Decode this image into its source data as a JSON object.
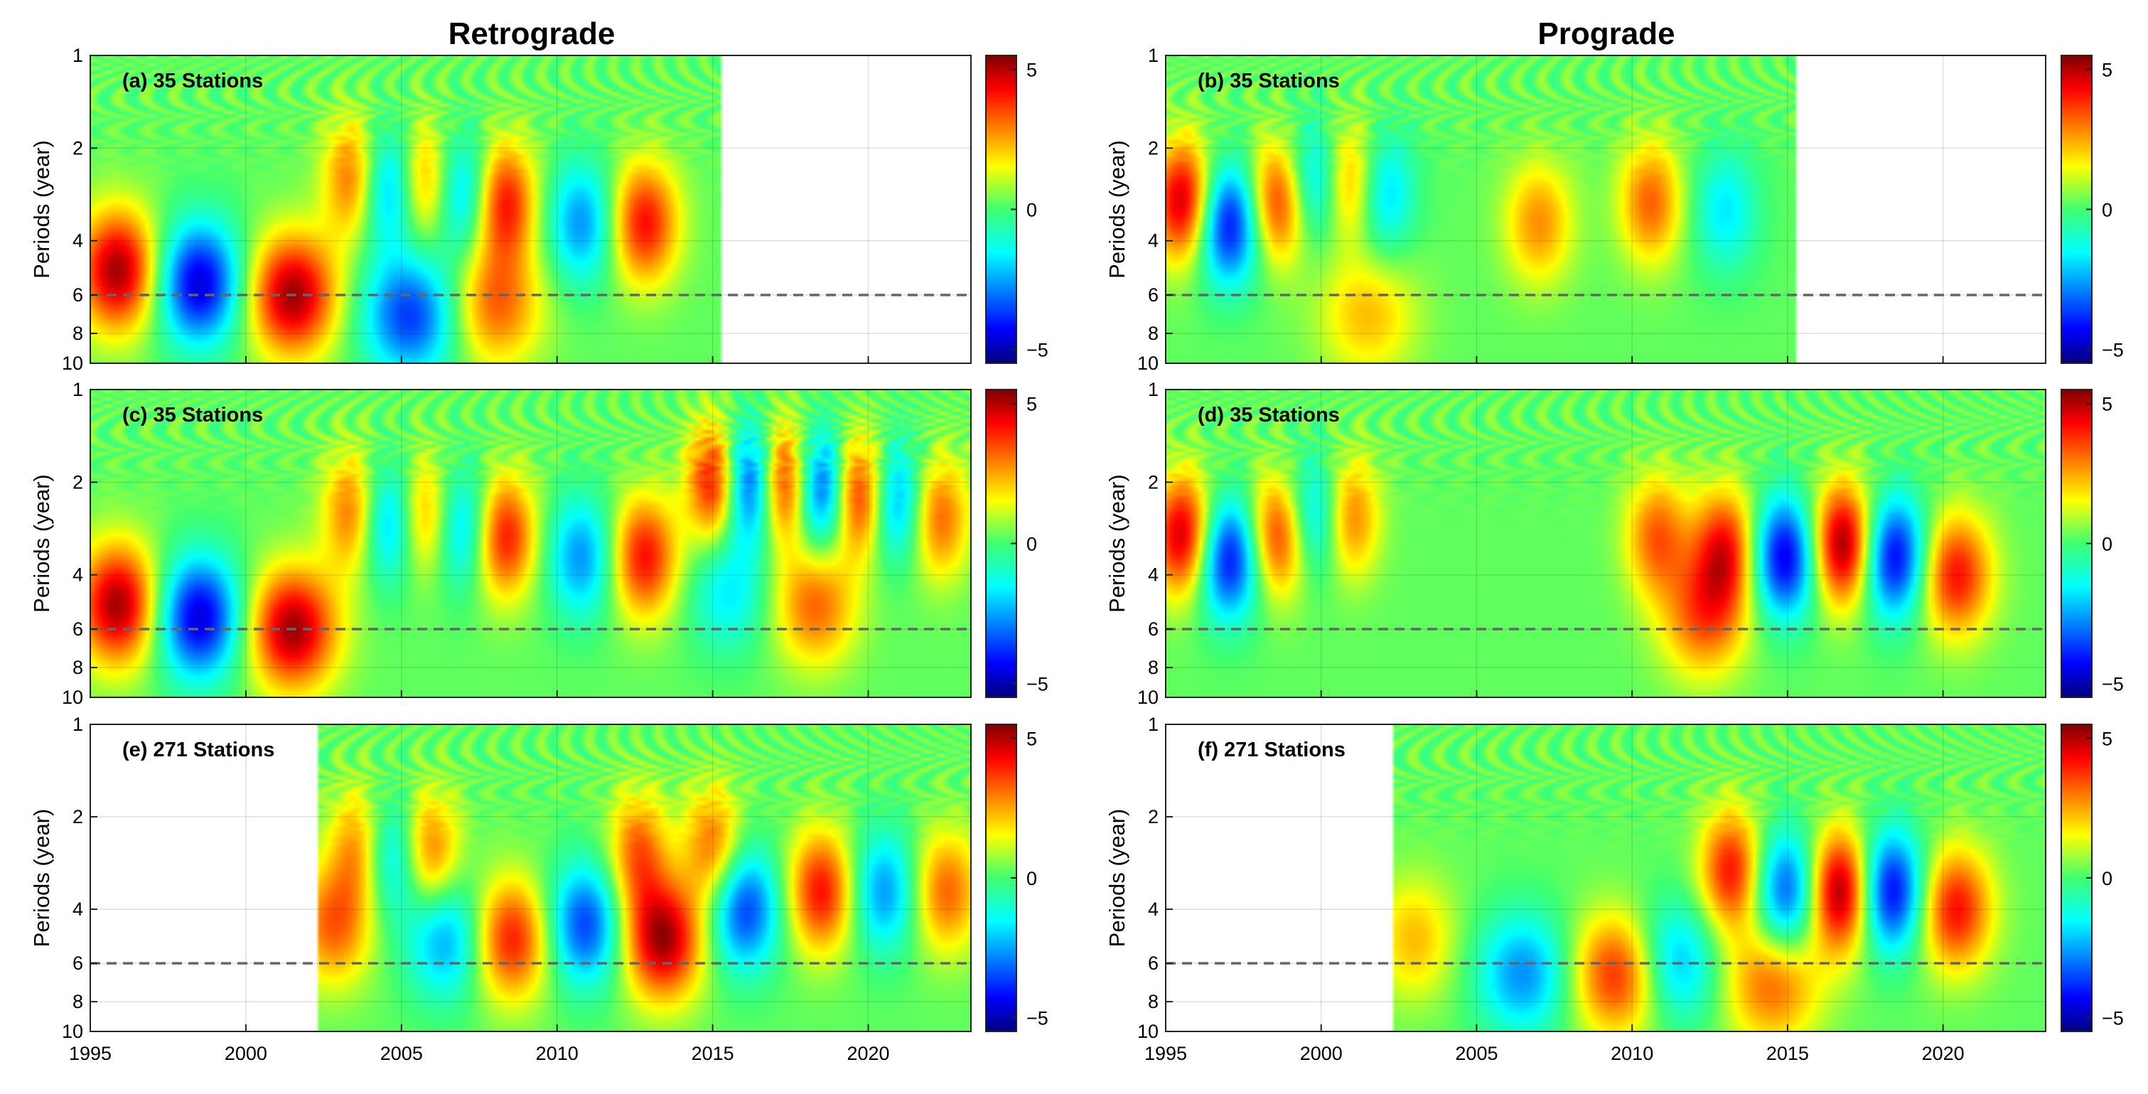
{
  "figure": {
    "column_titles": [
      "Retrograde",
      "Prograde"
    ]
  },
  "chart_data": [
    {
      "type": "heatmap",
      "panel": "a",
      "label": "(a) 35 Stations",
      "title": "Retrograde",
      "ylabel": "Periods (year)",
      "xlabel": "",
      "xlim": [
        1995,
        2023.3
      ],
      "ylim": [
        1,
        10
      ],
      "y_scale": "log",
      "xticks": [
        "1995",
        "2000",
        "2005",
        "2010",
        "2015",
        "2020"
      ],
      "yticks": [
        "1",
        "2",
        "4",
        "6",
        "8",
        "10"
      ],
      "data_x_range": [
        1995,
        2015.3
      ],
      "reference_line_period": 6,
      "colorbar": {
        "range": [
          -5.5,
          5.5
        ],
        "ticks": [
          "5",
          "0",
          "−5"
        ]
      },
      "features": [
        {
          "x": 1995.9,
          "period": 5.0,
          "value": 5
        },
        {
          "x": 1998.5,
          "period": 5.5,
          "value": -5
        },
        {
          "x": 2001.5,
          "period": 6.0,
          "value": 5
        },
        {
          "x": 2003.4,
          "period": 2.5,
          "value": 3
        },
        {
          "x": 2004.6,
          "period": 2.7,
          "value": -3
        },
        {
          "x": 2005.8,
          "period": 2.6,
          "value": 3
        },
        {
          "x": 2006.9,
          "period": 2.8,
          "value": -3
        },
        {
          "x": 2008.3,
          "period": 3.0,
          "value": 4
        },
        {
          "x": 2010.8,
          "period": 3.5,
          "value": -3
        },
        {
          "x": 2012.8,
          "period": 3.5,
          "value": 4
        },
        {
          "x": 2005.3,
          "period": 7.0,
          "value": -4
        },
        {
          "x": 2008.0,
          "period": 6.5,
          "value": 3
        }
      ]
    },
    {
      "type": "heatmap",
      "panel": "b",
      "label": "(b) 35 Stations",
      "title": "Prograde",
      "ylabel": "Periods (year)",
      "xlabel": "",
      "xlim": [
        1995,
        2023.3
      ],
      "ylim": [
        1,
        10
      ],
      "y_scale": "log",
      "xticks": [
        "1995",
        "2000",
        "2005",
        "2010",
        "2015",
        "2020"
      ],
      "yticks": [
        "1",
        "2",
        "4",
        "6",
        "8",
        "10"
      ],
      "data_x_range": [
        1995,
        2015.3
      ],
      "reference_line_period": 6,
      "colorbar": {
        "range": [
          -5.5,
          5.5
        ],
        "ticks": [
          "5",
          "0",
          "−5"
        ]
      },
      "features": [
        {
          "x": 1995.6,
          "period": 3.0,
          "value": 5
        },
        {
          "x": 1997.0,
          "period": 3.5,
          "value": -5
        },
        {
          "x": 1998.6,
          "period": 3.0,
          "value": 4
        },
        {
          "x": 1999.8,
          "period": 2.6,
          "value": -3
        },
        {
          "x": 2000.9,
          "period": 2.6,
          "value": 3
        },
        {
          "x": 2002.0,
          "period": 2.8,
          "value": -2.5
        },
        {
          "x": 2007.0,
          "period": 3.5,
          "value": 2.5
        },
        {
          "x": 2010.6,
          "period": 3.0,
          "value": 3
        },
        {
          "x": 2001.5,
          "period": 7.0,
          "value": 2
        },
        {
          "x": 2013.0,
          "period": 3.2,
          "value": -2
        }
      ]
    },
    {
      "type": "heatmap",
      "panel": "c",
      "label": "(c) 35 Stations",
      "ylabel": "Periods (year)",
      "xlabel": "",
      "xlim": [
        1995,
        2023.3
      ],
      "ylim": [
        1,
        10
      ],
      "y_scale": "log",
      "xticks": [
        "1995",
        "2000",
        "2005",
        "2010",
        "2015",
        "2020"
      ],
      "yticks": [
        "1",
        "2",
        "4",
        "6",
        "8",
        "10"
      ],
      "data_x_range": [
        1995,
        2023.3
      ],
      "reference_line_period": 6,
      "colorbar": {
        "range": [
          -5.5,
          5.5
        ],
        "ticks": [
          "5",
          "0",
          "−5"
        ]
      },
      "features": [
        {
          "x": 1995.9,
          "period": 5.0,
          "value": 5
        },
        {
          "x": 1998.5,
          "period": 5.5,
          "value": -5
        },
        {
          "x": 2001.5,
          "period": 6.0,
          "value": 5
        },
        {
          "x": 2003.4,
          "period": 2.5,
          "value": 3
        },
        {
          "x": 2004.6,
          "period": 2.7,
          "value": -3
        },
        {
          "x": 2005.8,
          "period": 2.6,
          "value": 3
        },
        {
          "x": 2006.9,
          "period": 2.8,
          "value": -3
        },
        {
          "x": 2008.3,
          "period": 3.0,
          "value": 4
        },
        {
          "x": 2010.8,
          "period": 3.5,
          "value": -3
        },
        {
          "x": 2012.8,
          "period": 3.5,
          "value": 4
        },
        {
          "x": 2015.0,
          "period": 2.0,
          "value": 4
        },
        {
          "x": 2016.2,
          "period": 2.0,
          "value": -4
        },
        {
          "x": 2017.3,
          "period": 2.0,
          "value": 4
        },
        {
          "x": 2018.5,
          "period": 2.1,
          "value": -4
        },
        {
          "x": 2019.7,
          "period": 2.2,
          "value": 4
        },
        {
          "x": 2020.9,
          "period": 2.3,
          "value": -3
        },
        {
          "x": 2022.3,
          "period": 2.6,
          "value": 3
        },
        {
          "x": 2018.3,
          "period": 5.0,
          "value": 3
        },
        {
          "x": 2015.5,
          "period": 4.5,
          "value": -2
        }
      ]
    },
    {
      "type": "heatmap",
      "panel": "d",
      "label": "(d) 35 Stations",
      "ylabel": "Periods (year)",
      "xlabel": "",
      "xlim": [
        1995,
        2023.3
      ],
      "ylim": [
        1,
        10
      ],
      "y_scale": "log",
      "xticks": [
        "1995",
        "2000",
        "2005",
        "2010",
        "2015",
        "2020"
      ],
      "yticks": [
        "1",
        "2",
        "4",
        "6",
        "8",
        "10"
      ],
      "data_x_range": [
        1995,
        2023.3
      ],
      "reference_line_period": 6,
      "colorbar": {
        "range": [
          -5.5,
          5.5
        ],
        "ticks": [
          "5",
          "0",
          "−5"
        ]
      },
      "features": [
        {
          "x": 1995.6,
          "period": 3.0,
          "value": 5
        },
        {
          "x": 1997.0,
          "period": 3.5,
          "value": -5
        },
        {
          "x": 1998.6,
          "period": 3.0,
          "value": 4
        },
        {
          "x": 1999.8,
          "period": 2.6,
          "value": -3
        },
        {
          "x": 2000.9,
          "period": 2.6,
          "value": 3
        },
        {
          "x": 2010.8,
          "period": 3.0,
          "value": 3
        },
        {
          "x": 2013.0,
          "period": 3.3,
          "value": 4
        },
        {
          "x": 2014.9,
          "period": 3.5,
          "value": -5
        },
        {
          "x": 2016.8,
          "period": 3.2,
          "value": 5.5
        },
        {
          "x": 2018.4,
          "period": 3.5,
          "value": -5
        },
        {
          "x": 2020.4,
          "period": 4.0,
          "value": 4
        },
        {
          "x": 2012.3,
          "period": 5.5,
          "value": 3
        }
      ]
    },
    {
      "type": "heatmap",
      "panel": "e",
      "label": "(e) 271 Stations",
      "ylabel": "Periods (year)",
      "xlabel": "",
      "xlim": [
        1995,
        2023.3
      ],
      "ylim": [
        1,
        10
      ],
      "y_scale": "log",
      "xticks": [
        "1995",
        "2000",
        "2005",
        "2010",
        "2015",
        "2020"
      ],
      "yticks": [
        "1",
        "2",
        "4",
        "6",
        "8",
        "10"
      ],
      "data_x_range": [
        2002.3,
        2023.3
      ],
      "reference_line_period": 6,
      "colorbar": {
        "range": [
          -5.5,
          5.5
        ],
        "ticks": [
          "5",
          "0",
          "−5"
        ]
      },
      "features": [
        {
          "x": 2002.8,
          "period": 4.5,
          "value": 3
        },
        {
          "x": 2003.6,
          "period": 2.5,
          "value": 2.5
        },
        {
          "x": 2004.7,
          "period": 2.7,
          "value": -2.5
        },
        {
          "x": 2005.9,
          "period": 2.6,
          "value": 3
        },
        {
          "x": 2006.5,
          "period": 5.0,
          "value": -3
        },
        {
          "x": 2008.5,
          "period": 5.0,
          "value": 4
        },
        {
          "x": 2010.9,
          "period": 4.5,
          "value": -4
        },
        {
          "x": 2013.4,
          "period": 5.0,
          "value": 5
        },
        {
          "x": 2012.6,
          "period": 2.6,
          "value": 3
        },
        {
          "x": 2016.0,
          "period": 4.0,
          "value": -4
        },
        {
          "x": 2015.0,
          "period": 2.5,
          "value": 3
        },
        {
          "x": 2018.5,
          "period": 3.5,
          "value": 4
        },
        {
          "x": 2020.5,
          "period": 3.5,
          "value": -3
        },
        {
          "x": 2022.5,
          "period": 3.5,
          "value": 3
        }
      ]
    },
    {
      "type": "heatmap",
      "panel": "f",
      "label": "(f) 271 Stations",
      "ylabel": "Periods (year)",
      "xlabel": "",
      "xlim": [
        1995,
        2023.3
      ],
      "ylim": [
        1,
        10
      ],
      "y_scale": "log",
      "xticks": [
        "1995",
        "2000",
        "2005",
        "2010",
        "2015",
        "2020"
      ],
      "yticks": [
        "1",
        "2",
        "4",
        "6",
        "8",
        "10"
      ],
      "data_x_range": [
        2002.3,
        2023.3
      ],
      "reference_line_period": 6,
      "colorbar": {
        "range": [
          -5.5,
          5.5
        ],
        "ticks": [
          "5",
          "0",
          "−5"
        ]
      },
      "features": [
        {
          "x": 2003.0,
          "period": 5.0,
          "value": 2
        },
        {
          "x": 2006.5,
          "period": 6.5,
          "value": -3
        },
        {
          "x": 2009.6,
          "period": 6.5,
          "value": 4
        },
        {
          "x": 2011.3,
          "period": 6.0,
          "value": -3
        },
        {
          "x": 2013.2,
          "period": 3.0,
          "value": 4
        },
        {
          "x": 2015.0,
          "period": 3.5,
          "value": -4
        },
        {
          "x": 2016.7,
          "period": 3.5,
          "value": 5.5
        },
        {
          "x": 2018.3,
          "period": 3.5,
          "value": -5
        },
        {
          "x": 2020.4,
          "period": 4.0,
          "value": 4
        },
        {
          "x": 2014.5,
          "period": 7.0,
          "value": 3
        }
      ]
    }
  ]
}
